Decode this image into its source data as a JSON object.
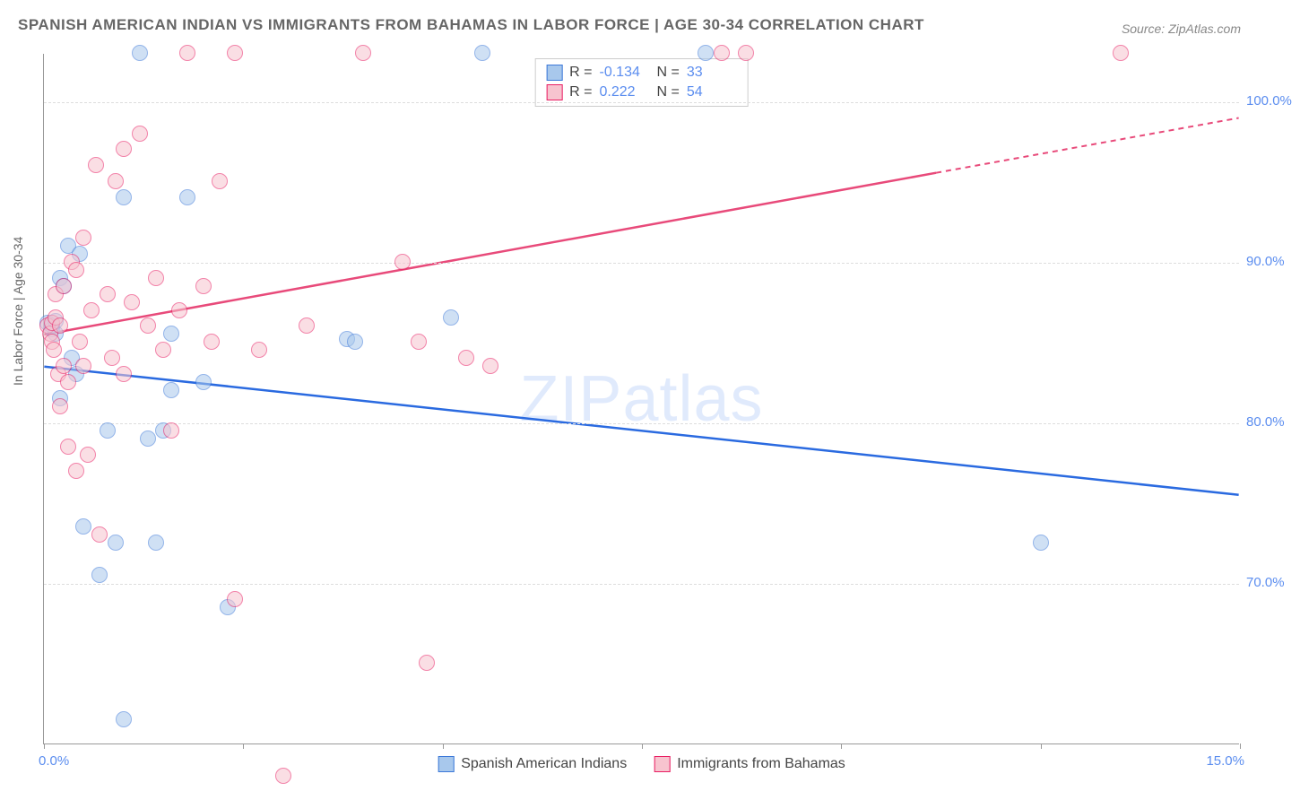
{
  "title": "SPANISH AMERICAN INDIAN VS IMMIGRANTS FROM BAHAMAS IN LABOR FORCE | AGE 30-34 CORRELATION CHART",
  "source": "Source: ZipAtlas.com",
  "watermark": "ZIPatlas",
  "chart": {
    "type": "scatter",
    "ylabel": "In Labor Force | Age 30-34",
    "xlim": [
      0,
      15
    ],
    "ylim": [
      60,
      103
    ],
    "yticks": [
      70,
      80,
      90,
      100
    ],
    "ytick_labels": [
      "70.0%",
      "80.0%",
      "90.0%",
      "100.0%"
    ],
    "xticks": [
      0,
      2.5,
      5,
      7.5,
      10,
      12.5,
      15
    ],
    "x_start_label": "0.0%",
    "x_end_label": "15.0%",
    "grid_color": "#dddddd",
    "background_color": "#ffffff",
    "axis_color": "#999999",
    "tick_label_color": "#5b8def",
    "title_color": "#666666",
    "marker_radius": 9,
    "marker_opacity": 0.55,
    "series": [
      {
        "name": "Spanish American Indians",
        "fill_color": "#a8c8ec",
        "stroke_color": "#3c78d8",
        "trend_color": "#2a6ae0",
        "R": "-0.134",
        "N": "33",
        "trend": {
          "x1": 0,
          "y1": 83.5,
          "x2": 15,
          "y2": 75.5,
          "dashed_from_x": null
        },
        "points": [
          [
            0.05,
            86.2
          ],
          [
            0.1,
            85.8
          ],
          [
            0.1,
            86.0
          ],
          [
            0.15,
            85.5
          ],
          [
            0.15,
            86.3
          ],
          [
            0.2,
            81.5
          ],
          [
            0.2,
            89.0
          ],
          [
            0.25,
            88.5
          ],
          [
            0.3,
            91.0
          ],
          [
            0.35,
            84.0
          ],
          [
            0.4,
            83.0
          ],
          [
            0.45,
            90.5
          ],
          [
            0.5,
            73.5
          ],
          [
            0.7,
            70.5
          ],
          [
            0.8,
            79.5
          ],
          [
            0.9,
            72.5
          ],
          [
            1.0,
            61.5
          ],
          [
            1.0,
            94.0
          ],
          [
            1.2,
            103.0
          ],
          [
            1.3,
            79.0
          ],
          [
            1.4,
            72.5
          ],
          [
            1.5,
            79.5
          ],
          [
            1.6,
            82.0
          ],
          [
            1.6,
            85.5
          ],
          [
            1.8,
            94.0
          ],
          [
            2.0,
            82.5
          ],
          [
            2.3,
            68.5
          ],
          [
            3.8,
            85.2
          ],
          [
            3.9,
            85.0
          ],
          [
            5.1,
            86.5
          ],
          [
            5.5,
            103.0
          ],
          [
            8.3,
            103.0
          ],
          [
            12.5,
            72.5
          ]
        ]
      },
      {
        "name": "Immigrants from Bahamas",
        "fill_color": "#f7c4cf",
        "stroke_color": "#e91e63",
        "trend_color": "#e84a7a",
        "R": "0.222",
        "N": "54",
        "trend": {
          "x1": 0,
          "y1": 85.5,
          "x2": 15,
          "y2": 99.0,
          "dashed_from_x": 11.2
        },
        "points": [
          [
            0.05,
            86.0
          ],
          [
            0.08,
            85.5
          ],
          [
            0.1,
            86.2
          ],
          [
            0.1,
            85.0
          ],
          [
            0.12,
            84.5
          ],
          [
            0.15,
            86.5
          ],
          [
            0.15,
            88.0
          ],
          [
            0.18,
            83.0
          ],
          [
            0.2,
            81.0
          ],
          [
            0.2,
            86.0
          ],
          [
            0.25,
            83.5
          ],
          [
            0.25,
            88.5
          ],
          [
            0.3,
            78.5
          ],
          [
            0.3,
            82.5
          ],
          [
            0.35,
            90.0
          ],
          [
            0.4,
            77.0
          ],
          [
            0.4,
            89.5
          ],
          [
            0.45,
            85.0
          ],
          [
            0.5,
            83.5
          ],
          [
            0.5,
            91.5
          ],
          [
            0.55,
            78.0
          ],
          [
            0.6,
            87.0
          ],
          [
            0.65,
            96.0
          ],
          [
            0.7,
            73.0
          ],
          [
            0.8,
            88.0
          ],
          [
            0.85,
            84.0
          ],
          [
            0.9,
            95.0
          ],
          [
            1.0,
            83.0
          ],
          [
            1.0,
            97.0
          ],
          [
            1.1,
            87.5
          ],
          [
            1.2,
            98.0
          ],
          [
            1.3,
            86.0
          ],
          [
            1.4,
            89.0
          ],
          [
            1.5,
            84.5
          ],
          [
            1.6,
            79.5
          ],
          [
            1.7,
            87.0
          ],
          [
            1.8,
            103.0
          ],
          [
            2.0,
            88.5
          ],
          [
            2.1,
            85.0
          ],
          [
            2.2,
            95.0
          ],
          [
            2.4,
            69.0
          ],
          [
            2.4,
            103.0
          ],
          [
            2.7,
            84.5
          ],
          [
            3.0,
            58.0
          ],
          [
            3.3,
            86.0
          ],
          [
            4.0,
            103.0
          ],
          [
            4.5,
            90.0
          ],
          [
            4.7,
            85.0
          ],
          [
            4.8,
            65.0
          ],
          [
            5.3,
            84.0
          ],
          [
            5.6,
            83.5
          ],
          [
            8.5,
            103.0
          ],
          [
            8.8,
            103.0
          ],
          [
            13.5,
            103.0
          ]
        ]
      }
    ]
  }
}
